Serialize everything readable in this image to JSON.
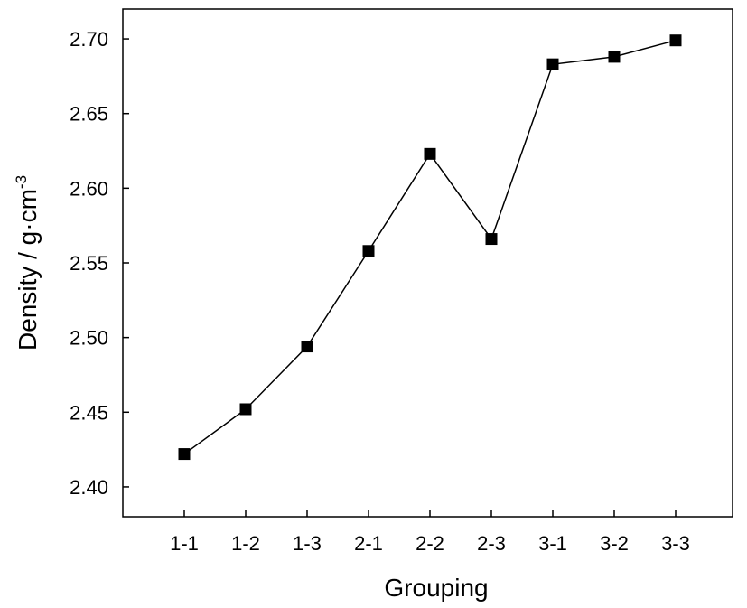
{
  "chart_data": {
    "type": "line",
    "title": "",
    "xlabel": "Grouping",
    "ylabel": "Density / g·cm",
    "ylabel_superscript": "-3",
    "categories": [
      "1-1",
      "1-2",
      "1-3",
      "2-1",
      "2-2",
      "2-3",
      "3-1",
      "3-2",
      "3-3"
    ],
    "series": [
      {
        "values": [
          2.422,
          2.452,
          2.494,
          2.558,
          2.623,
          2.566,
          2.683,
          2.688,
          2.699
        ],
        "color": "#000000",
        "marker": "square"
      }
    ],
    "ylim": [
      2.38,
      2.72
    ],
    "yticks": [
      2.4,
      2.45,
      2.5,
      2.55,
      2.6,
      2.65,
      2.7
    ],
    "ytick_labels": [
      "2.40",
      "2.45",
      "2.50",
      "2.55",
      "2.60",
      "2.65",
      "2.70"
    ],
    "grid": false,
    "legend": "none"
  }
}
